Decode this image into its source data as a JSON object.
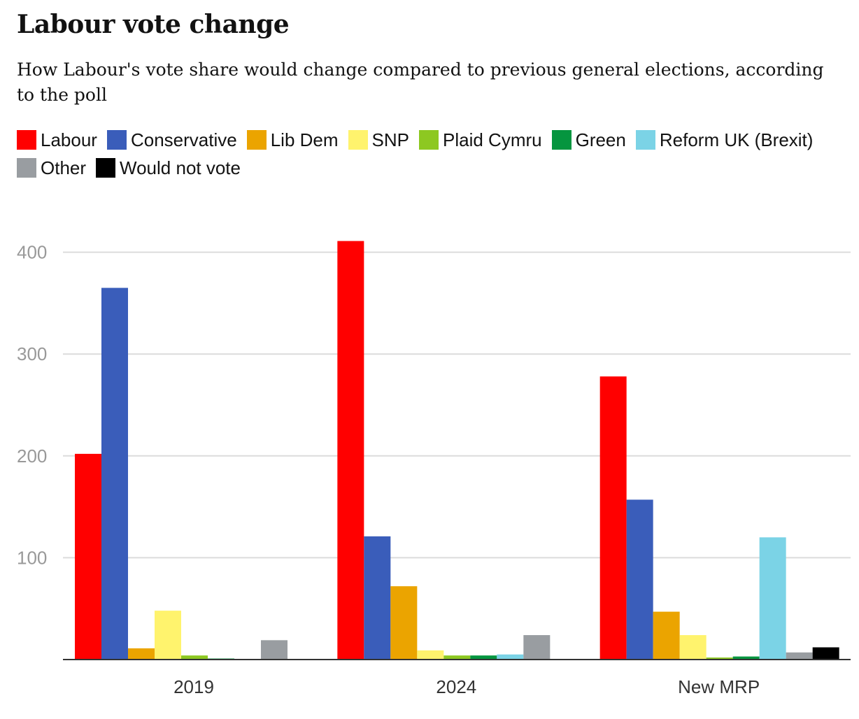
{
  "chart_data": {
    "type": "bar",
    "title": "Labour vote change",
    "subtitle": "How Labour's vote share would change compared to previous general elections, according to the poll",
    "categories": [
      "2019",
      "2024",
      "New MRP"
    ],
    "series": [
      {
        "name": "Labour",
        "color": "#ff0000",
        "values": [
          202,
          411,
          278
        ]
      },
      {
        "name": "Conservative",
        "color": "#3a5dba",
        "values": [
          365,
          121,
          157
        ]
      },
      {
        "name": "Lib Dem",
        "color": "#eba400",
        "values": [
          11,
          72,
          47
        ]
      },
      {
        "name": "SNP",
        "color": "#fff36d",
        "values": [
          48,
          9,
          24
        ]
      },
      {
        "name": "Plaid Cymru",
        "color": "#8dc821",
        "values": [
          4,
          4,
          2
        ]
      },
      {
        "name": "Green",
        "color": "#05953f",
        "values": [
          1,
          4,
          3
        ]
      },
      {
        "name": "Reform UK (Brexit)",
        "color": "#7bd3e6",
        "values": [
          0,
          5,
          120
        ]
      },
      {
        "name": "Other",
        "color": "#999da1",
        "values": [
          19,
          24,
          7
        ]
      },
      {
        "name": "Would not vote",
        "color": "#000000",
        "values": [
          0,
          0,
          12
        ]
      }
    ],
    "ylim": [
      0,
      420
    ],
    "yticks": [
      100,
      200,
      300,
      400
    ],
    "xlabel": "",
    "ylabel": "",
    "grid": true,
    "legend_position": "top"
  }
}
